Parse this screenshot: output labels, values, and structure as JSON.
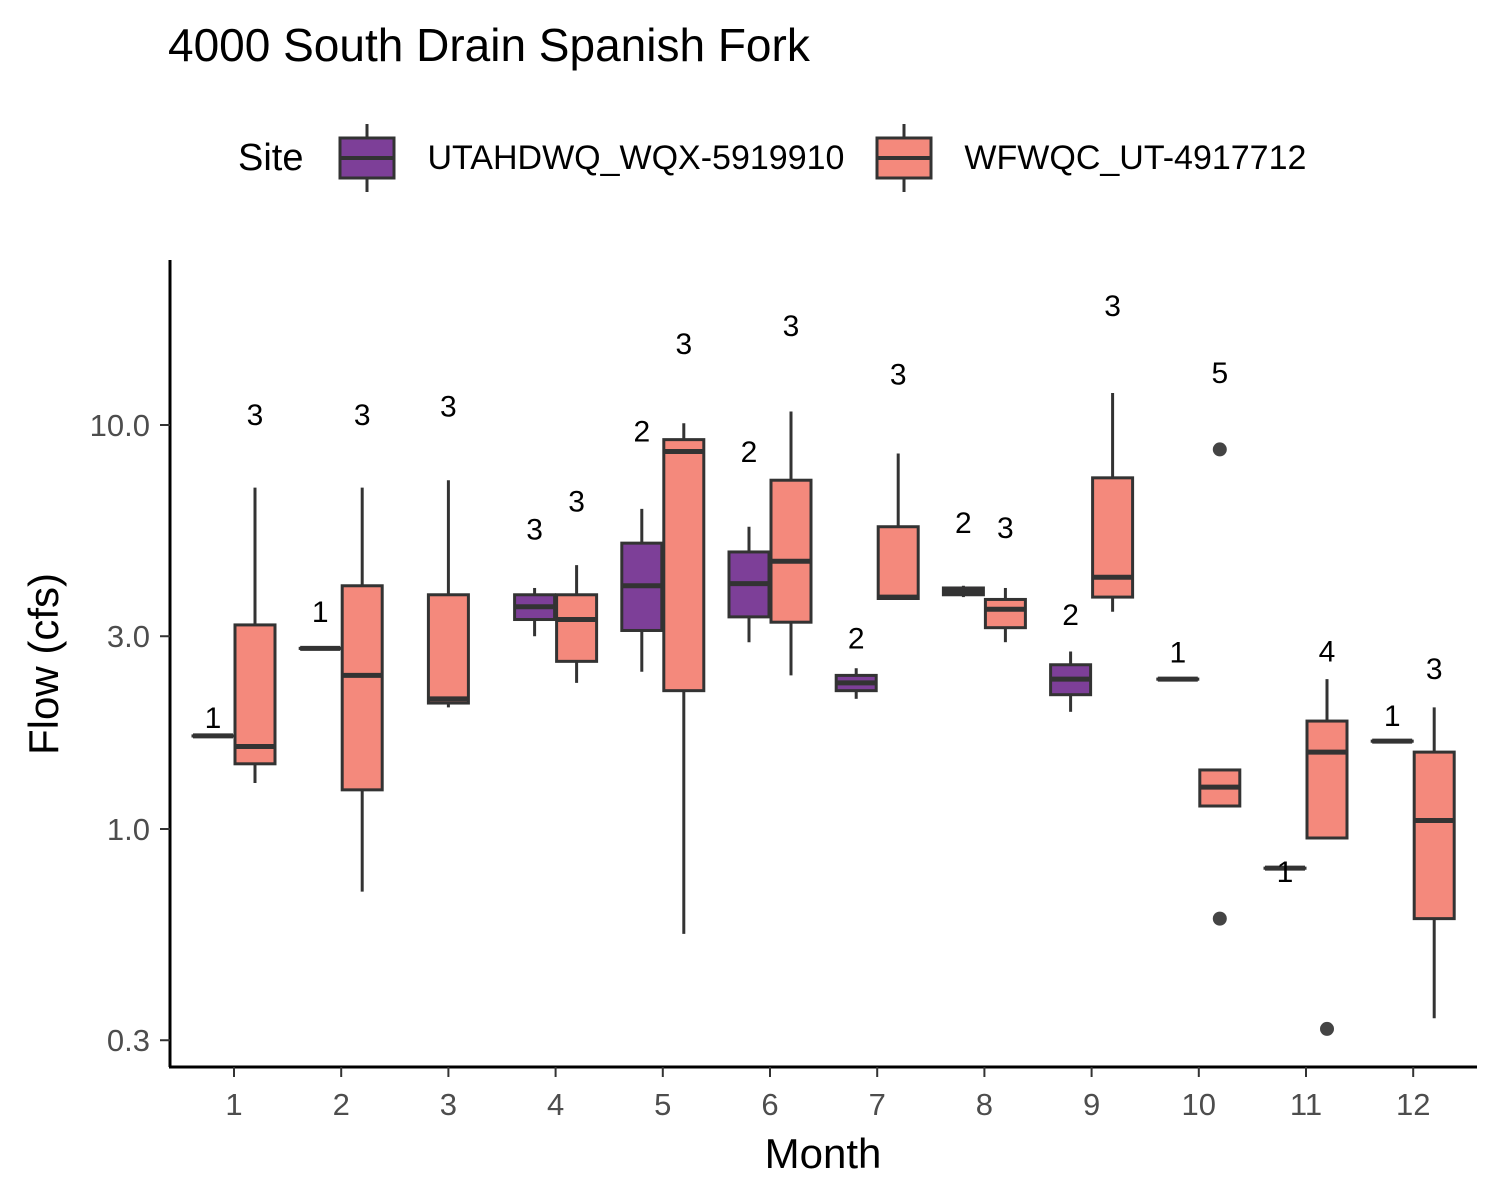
{
  "chart_data": {
    "type": "boxplot",
    "title": "4000 South Drain Spanish Fork",
    "xlabel": "Month",
    "ylabel": "Flow (cfs)",
    "y_scale": "log10",
    "ylim": [
      0.25,
      25
    ],
    "y_ticks": [
      0.3,
      1.0,
      3.0,
      10.0
    ],
    "y_tick_labels": [
      "0.3",
      "1.0",
      "3.0",
      "10.0"
    ],
    "categories": [
      "1",
      "2",
      "3",
      "4",
      "5",
      "6",
      "7",
      "8",
      "9",
      "10",
      "11",
      "12"
    ],
    "legend": {
      "title": "Site",
      "position": "top",
      "entries": [
        {
          "label": "UTAHDWQ_WQX-5919910",
          "color": "#7D3F98"
        },
        {
          "label": "WFWQC_UT-4917712",
          "color": "#F4897C"
        }
      ]
    },
    "grid": false,
    "series": [
      {
        "name": "UTAHDWQ_WQX-5919910",
        "color": "#7D3F98",
        "boxes": [
          {
            "month": "1",
            "n": "1",
            "min": 1.7,
            "q1": 1.7,
            "median": 1.7,
            "q3": 1.7,
            "max": 1.7
          },
          {
            "month": "2",
            "n": "1",
            "min": 2.8,
            "q1": 2.8,
            "median": 2.8,
            "q3": 2.8,
            "max": 2.8
          },
          {
            "month": "4",
            "n": "3",
            "min": 3.0,
            "q1": 3.3,
            "median": 3.55,
            "q3": 3.8,
            "max": 3.95
          },
          {
            "month": "5",
            "n": "2",
            "min": 2.45,
            "q1": 3.1,
            "median": 4.0,
            "q3": 5.1,
            "max": 6.2
          },
          {
            "month": "6",
            "n": "2",
            "min": 2.9,
            "q1": 3.35,
            "median": 4.05,
            "q3": 4.85,
            "max": 5.6
          },
          {
            "month": "7",
            "n": "2",
            "min": 2.1,
            "q1": 2.2,
            "median": 2.3,
            "q3": 2.4,
            "max": 2.5
          },
          {
            "month": "8",
            "n": "2",
            "min": 3.75,
            "q1": 3.8,
            "median": 3.87,
            "q3": 3.95,
            "max": 4.0
          },
          {
            "month": "9",
            "n": "2",
            "min": 1.95,
            "q1": 2.15,
            "median": 2.35,
            "q3": 2.55,
            "max": 2.75
          },
          {
            "month": "10",
            "n": "1",
            "min": 2.35,
            "q1": 2.35,
            "median": 2.35,
            "q3": 2.35,
            "max": 2.35
          },
          {
            "month": "11",
            "n": "1",
            "min": 0.8,
            "q1": 0.8,
            "median": 0.8,
            "q3": 0.8,
            "max": 0.8
          },
          {
            "month": "12",
            "n": "1",
            "min": 1.65,
            "q1": 1.65,
            "median": 1.65,
            "q3": 1.65,
            "max": 1.65
          }
        ]
      },
      {
        "name": "WFWQC_UT-4917712",
        "color": "#F4897C",
        "boxes": [
          {
            "month": "1",
            "n": "3",
            "min": 1.3,
            "q1": 1.45,
            "median": 1.6,
            "q3": 3.2,
            "max": 7.0
          },
          {
            "month": "2",
            "n": "3",
            "min": 0.7,
            "q1": 1.25,
            "median": 2.4,
            "q3": 4.0,
            "max": 7.0
          },
          {
            "month": "3",
            "n": "3",
            "min": 2.0,
            "q1": 2.05,
            "median": 2.1,
            "q3": 3.8,
            "max": 7.3
          },
          {
            "month": "4",
            "n": "3",
            "min": 2.3,
            "q1": 2.6,
            "median": 3.3,
            "q3": 3.8,
            "max": 4.5
          },
          {
            "month": "5",
            "n": "3",
            "min": 0.55,
            "q1": 2.2,
            "median": 8.6,
            "q3": 9.2,
            "max": 10.1,
            "outliers": []
          },
          {
            "month": "6",
            "n": "3",
            "min": 2.4,
            "q1": 3.25,
            "median": 4.6,
            "q3": 7.3,
            "max": 10.8
          },
          {
            "month": "7",
            "n": "3",
            "min": 3.7,
            "q1": 3.72,
            "median": 3.75,
            "q3": 5.6,
            "max": 8.5
          },
          {
            "month": "8",
            "n": "3",
            "min": 2.9,
            "q1": 3.15,
            "median": 3.5,
            "q3": 3.7,
            "max": 3.95
          },
          {
            "month": "9",
            "n": "3",
            "min": 3.45,
            "q1": 3.75,
            "median": 4.2,
            "q3": 7.4,
            "max": 12.0
          },
          {
            "month": "10",
            "n": "5",
            "min": 1.14,
            "q1": 1.14,
            "median": 1.27,
            "q3": 1.4,
            "max": 1.4,
            "outliers": [
              8.7,
              0.6
            ]
          },
          {
            "month": "11",
            "n": "4",
            "min": 0.95,
            "q1": 0.95,
            "median": 1.55,
            "q3": 1.85,
            "max": 2.35,
            "outliers": [
              0.32
            ]
          },
          {
            "month": "12",
            "n": "3",
            "min": 0.34,
            "q1": 0.6,
            "median": 1.05,
            "q3": 1.55,
            "max": 2.0
          }
        ]
      }
    ],
    "count_labels": [
      {
        "month": "1",
        "series": 0,
        "text": "1",
        "y": 1.78
      },
      {
        "month": "1",
        "series": 1,
        "text": "3",
        "y": 10.0
      },
      {
        "month": "2",
        "series": 0,
        "text": "1",
        "y": 3.25
      },
      {
        "month": "2",
        "series": 1,
        "text": "3",
        "y": 10.0
      },
      {
        "month": "3",
        "series": 1,
        "text": "3",
        "y": 10.5
      },
      {
        "month": "4",
        "series": 0,
        "text": "3",
        "y": 5.2
      },
      {
        "month": "4",
        "series": 1,
        "text": "3",
        "y": 6.1
      },
      {
        "month": "5",
        "series": 0,
        "text": "2",
        "y": 9.1
      },
      {
        "month": "5",
        "series": 1,
        "text": "3",
        "y": 15.0
      },
      {
        "month": "6",
        "series": 0,
        "text": "2",
        "y": 8.1
      },
      {
        "month": "6",
        "series": 1,
        "text": "3",
        "y": 16.6
      },
      {
        "month": "7",
        "series": 0,
        "text": "2",
        "y": 2.8
      },
      {
        "month": "7",
        "series": 1,
        "text": "3",
        "y": 12.6
      },
      {
        "month": "8",
        "series": 0,
        "text": "2",
        "y": 5.4
      },
      {
        "month": "8",
        "series": 1,
        "text": "3",
        "y": 5.25
      },
      {
        "month": "9",
        "series": 0,
        "text": "2",
        "y": 3.2
      },
      {
        "month": "9",
        "series": 1,
        "text": "3",
        "y": 18.6
      },
      {
        "month": "10",
        "series": 0,
        "text": "1",
        "y": 2.58
      },
      {
        "month": "10",
        "series": 1,
        "text": "5",
        "y": 12.7
      },
      {
        "month": "11",
        "series": 0,
        "text": "1",
        "y": 0.74
      },
      {
        "month": "11",
        "series": 1,
        "text": "4",
        "y": 2.6
      },
      {
        "month": "12",
        "series": 0,
        "text": "1",
        "y": 1.8
      },
      {
        "month": "12",
        "series": 1,
        "text": "3",
        "y": 2.35
      }
    ]
  }
}
